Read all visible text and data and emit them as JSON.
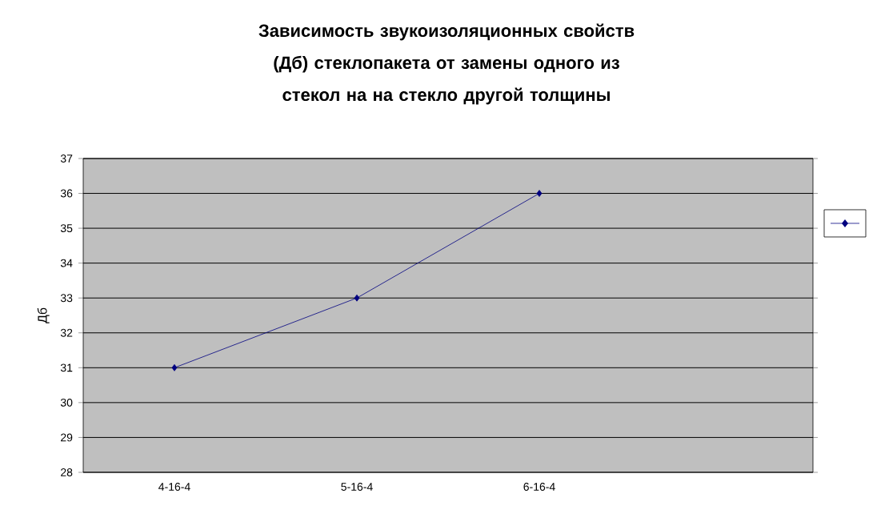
{
  "chart_data": {
    "type": "line",
    "title": "Зависимость звукоизоляционных свойств (Дб) стеклопакета от замены одного из стекол на на стекло другой толщины",
    "ylabel": "Дб",
    "categories": [
      "4-16-4",
      "5-16-4",
      "6-16-4",
      null
    ],
    "series": [
      {
        "color": "#000080",
        "values": [
          31,
          33,
          36,
          null
        ]
      }
    ],
    "ylim": [
      28,
      37
    ],
    "yticks": [
      28,
      29,
      30,
      31,
      32,
      33,
      34,
      35,
      36,
      37
    ],
    "grid": "y",
    "marker": "diamond",
    "line_style": "solid"
  }
}
